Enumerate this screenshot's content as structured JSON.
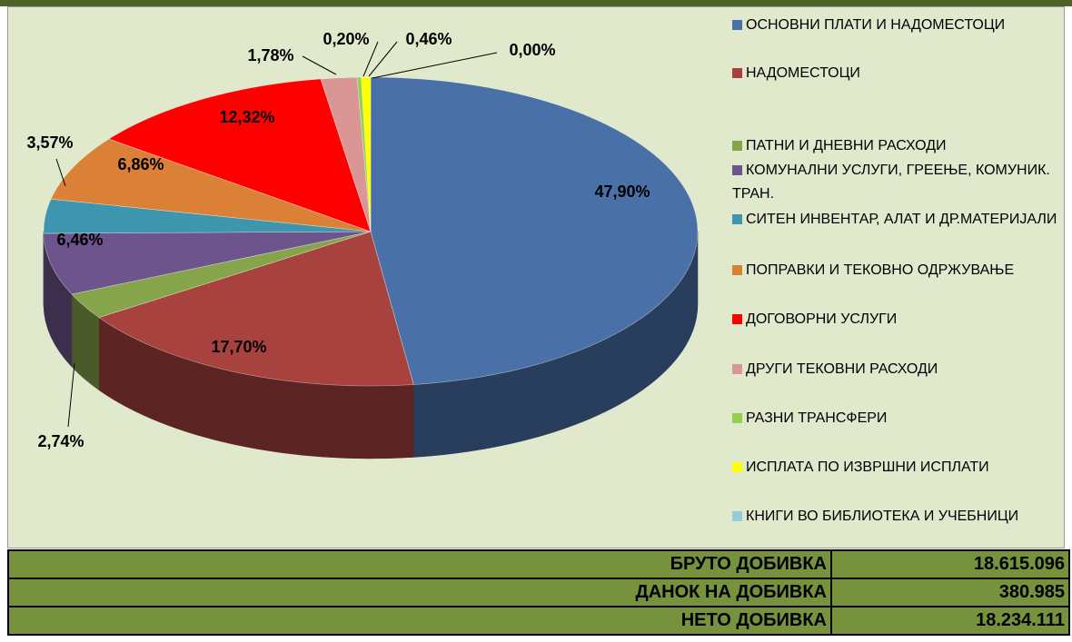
{
  "chart_data": {
    "type": "pie",
    "categories": [
      "ОСНОВНИ ПЛАТИ И НАДОМЕСТОЦИ",
      "НАДОМЕСТОЦИ",
      "ПАТНИ И ДНЕВНИ РАСХОДИ",
      "КОМУНАЛНИ УСЛУГИ, ГРЕЕЊЕ, КОМУНИК. ТРАН.",
      "СИТЕН ИНВЕНТАР, АЛАТ И ДР.МАТЕРИЈАЛИ",
      "ПОПРАВКИ И ТЕКОВНО ОДРЖУВАЊЕ",
      "ДОГОВОРНИ УСЛУГИ",
      "ДРУГИ ТЕКОВНИ РАСХОДИ",
      "РАЗНИ ТРАНСФЕРИ",
      "ИСПЛАТА ПО ИЗВРШНИ ИСПЛАТИ",
      "КНИГИ ВО БИБЛИОТЕКА И УЧЕБНИЦИ"
    ],
    "values": [
      47.9,
      17.7,
      2.74,
      6.46,
      3.57,
      6.86,
      12.32,
      1.78,
      0.2,
      0.46,
      0.0
    ],
    "value_labels": [
      "47,90%",
      "17,70%",
      "2,74%",
      "6,46%",
      "3,57%",
      "6,86%",
      "12,32%",
      "1,78%",
      "0,20%",
      "0,46%",
      "0,00%"
    ],
    "colors": [
      "#4a71a7",
      "#a8423f",
      "#86a44a",
      "#6e548d",
      "#3d96ae",
      "#da8137",
      "#ff0000",
      "#d99694",
      "#92d050",
      "#ffff00",
      "#93cddd"
    ],
    "legend": "right"
  },
  "table": {
    "rows": [
      [
        "БРУТО ДОБИВКА",
        "18.615.096"
      ],
      [
        "ДАНОК НА ДОБИВКА",
        "380.985"
      ],
      [
        "НЕТО ДОБИВКА",
        "18.234.111"
      ]
    ]
  }
}
